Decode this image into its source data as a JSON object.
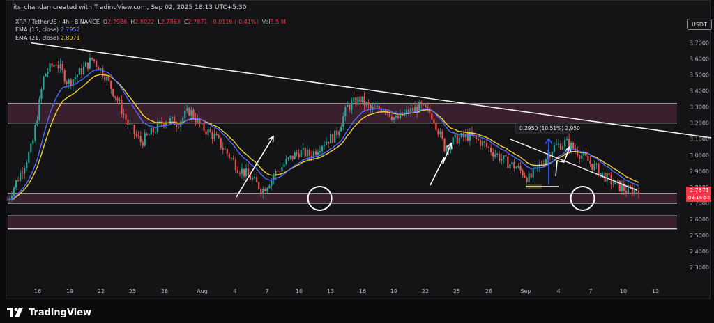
{
  "header": {
    "credit": "its_chandan created with TradingView.com, Sep 02, 2025 18:13 UTC+5:30",
    "symbol": "XRP / TetherUS · 4h · BINANCE",
    "o_label": "O",
    "o_value": "2.7986",
    "h_label": "H",
    "h_value": "2.8022",
    "l_label": "L",
    "l_value": "2.7863",
    "c_label": "C",
    "c_value": "2.7871",
    "change": "-0.0116 (-0.41%)",
    "vol_label": "Vol",
    "vol_value": "3.5 M",
    "ema15_label": "EMA (15, close)",
    "ema15_value": "2.7952",
    "ema21_label": "EMA (21, close)",
    "ema21_value": "2.8071",
    "currency": "USDT"
  },
  "brand": {
    "name": "TradingView"
  },
  "colors": {
    "background": "#141416",
    "up": "#26a69a",
    "down": "#ef5350",
    "ema15": "#4f6bff",
    "ema21": "#f5d130",
    "zone": "#5a2a45",
    "price_tag": "#f23645"
  },
  "chart_data": {
    "type": "candlestick",
    "title": "",
    "xlabel": "",
    "ylabel": "",
    "ylim": [
      2.18,
      3.78
    ],
    "yticks": [
      2.3,
      2.4,
      2.5,
      2.6,
      2.7,
      2.8,
      2.9,
      3.0,
      3.1,
      3.2,
      3.3,
      3.4,
      3.5,
      3.6,
      3.7
    ],
    "ytick_labels": [
      "2.3000",
      "2.4000",
      "2.5000",
      "2.6000",
      "2.7000",
      "2.8000",
      "2.9000",
      "3.0000",
      "3.1000",
      "3.2000",
      "3.3000",
      "3.4000",
      "3.5000",
      "3.6000",
      "3.7000"
    ],
    "xticks": [
      "16",
      "19",
      "22",
      "25",
      "28",
      "Aug",
      "4",
      "7",
      "10",
      "13",
      "16",
      "19",
      "22",
      "25",
      "28",
      "Sep",
      "4",
      "7",
      "10",
      "13"
    ],
    "last_price": "2.7871",
    "countdown": "03:16:55",
    "grid": false,
    "price_path": [
      [
        0,
        2.72
      ],
      [
        1,
        2.88
      ],
      [
        2,
        3.05
      ],
      [
        3,
        3.5
      ],
      [
        4,
        3.58
      ],
      [
        5,
        3.45
      ],
      [
        6,
        3.52
      ],
      [
        7,
        3.6
      ],
      [
        8,
        3.5
      ],
      [
        9,
        3.35
      ],
      [
        10,
        3.18
      ],
      [
        11,
        3.08
      ],
      [
        12,
        3.15
      ],
      [
        13,
        3.22
      ],
      [
        14,
        3.2
      ],
      [
        15,
        3.28
      ],
      [
        16,
        3.17
      ],
      [
        17,
        3.12
      ],
      [
        18,
        3.02
      ],
      [
        19,
        2.92
      ],
      [
        20,
        2.86
      ],
      [
        21,
        2.78
      ],
      [
        22,
        2.88
      ],
      [
        23,
        2.96
      ],
      [
        24,
        3.02
      ],
      [
        25,
        3.0
      ],
      [
        26,
        3.08
      ],
      [
        27,
        3.12
      ],
      [
        28,
        3.3
      ],
      [
        29,
        3.35
      ],
      [
        30,
        3.28
      ],
      [
        31,
        3.3
      ],
      [
        32,
        3.22
      ],
      [
        33,
        3.27
      ],
      [
        34,
        3.3
      ],
      [
        35,
        3.25
      ],
      [
        36,
        3.05
      ],
      [
        37,
        3.1
      ],
      [
        38,
        3.12
      ],
      [
        39,
        3.08
      ],
      [
        40,
        3.02
      ],
      [
        41,
        2.96
      ],
      [
        42,
        2.92
      ],
      [
        43,
        2.85
      ],
      [
        44,
        2.95
      ],
      [
        45,
        3.05
      ],
      [
        46,
        3.08
      ],
      [
        47,
        3.02
      ],
      [
        48,
        2.95
      ],
      [
        49,
        2.88
      ],
      [
        50,
        2.82
      ],
      [
        51,
        2.78
      ],
      [
        52,
        2.79
      ]
    ],
    "time_range": [
      14.8,
      61.5
    ],
    "time_ticks_days": [
      16,
      19,
      22,
      25,
      28,
      32,
      35,
      38,
      41,
      44,
      47,
      50,
      53,
      56,
      59,
      63,
      66,
      69,
      72,
      75
    ],
    "candle_time_range": [
      14.8,
      60.9
    ],
    "series": [
      {
        "name": "EMA (15, close)",
        "color": "#4f6bff"
      },
      {
        "name": "EMA (21, close)",
        "color": "#f5d130"
      }
    ],
    "zones": [
      {
        "from": 3.2,
        "to": 3.32
      },
      {
        "from": 2.7,
        "to": 2.76
      },
      {
        "from": 2.54,
        "to": 2.62
      }
    ],
    "trendline": {
      "from": [
        16.5,
        3.7
      ],
      "to": [
        79.0,
        2.955
      ]
    },
    "measure": {
      "label": "0.2950 (10.51%) 2,950",
      "t": 60.4,
      "from_price": 2.8,
      "to_price": 3.1
    }
  }
}
